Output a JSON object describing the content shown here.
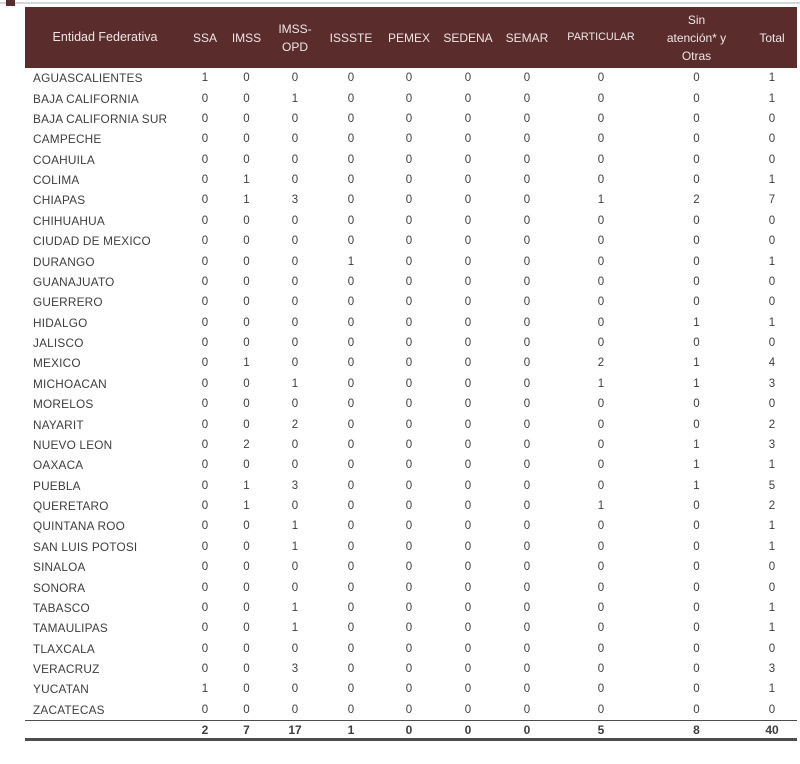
{
  "colors": {
    "header_bg": "#5a2c2c",
    "header_text": "#f0e6e6",
    "body_text": "#3d3d3d",
    "top_rule": "#d6d6d6",
    "total_line": "#4d4d4d"
  },
  "table": {
    "title_column": "Entidad Federativa",
    "columns": [
      {
        "id": "ssa",
        "label": "SSA"
      },
      {
        "id": "imss",
        "label": "IMSS"
      },
      {
        "id": "imss-opd",
        "label": "IMSS-\nOPD"
      },
      {
        "id": "issste",
        "label": "ISSSTE"
      },
      {
        "id": "pemex",
        "label": "PEMEX"
      },
      {
        "id": "sedena",
        "label": "SEDENA"
      },
      {
        "id": "semar",
        "label": "SEMAR"
      },
      {
        "id": "particular",
        "label": "PARTICULAR"
      },
      {
        "id": "sin-atencion-otras",
        "label": "Sin\natención* y\nOtras"
      },
      {
        "id": "total",
        "label": "Total"
      }
    ],
    "rows": [
      {
        "state": "AGUASCALIENTES",
        "values": [
          1,
          0,
          0,
          0,
          0,
          0,
          0,
          0,
          0,
          1
        ]
      },
      {
        "state": "BAJA CALIFORNIA",
        "values": [
          0,
          0,
          1,
          0,
          0,
          0,
          0,
          0,
          0,
          1
        ]
      },
      {
        "state": "BAJA CALIFORNIA SUR",
        "values": [
          0,
          0,
          0,
          0,
          0,
          0,
          0,
          0,
          0,
          0
        ]
      },
      {
        "state": "CAMPECHE",
        "values": [
          0,
          0,
          0,
          0,
          0,
          0,
          0,
          0,
          0,
          0
        ]
      },
      {
        "state": "COAHUILA",
        "values": [
          0,
          0,
          0,
          0,
          0,
          0,
          0,
          0,
          0,
          0
        ]
      },
      {
        "state": "COLIMA",
        "values": [
          0,
          1,
          0,
          0,
          0,
          0,
          0,
          0,
          0,
          1
        ]
      },
      {
        "state": "CHIAPAS",
        "values": [
          0,
          1,
          3,
          0,
          0,
          0,
          0,
          1,
          2,
          7
        ]
      },
      {
        "state": "CHIHUAHUA",
        "values": [
          0,
          0,
          0,
          0,
          0,
          0,
          0,
          0,
          0,
          0
        ]
      },
      {
        "state": "CIUDAD DE MEXICO",
        "values": [
          0,
          0,
          0,
          0,
          0,
          0,
          0,
          0,
          0,
          0
        ]
      },
      {
        "state": "DURANGO",
        "values": [
          0,
          0,
          0,
          1,
          0,
          0,
          0,
          0,
          0,
          1
        ]
      },
      {
        "state": "GUANAJUATO",
        "values": [
          0,
          0,
          0,
          0,
          0,
          0,
          0,
          0,
          0,
          0
        ]
      },
      {
        "state": "GUERRERO",
        "values": [
          0,
          0,
          0,
          0,
          0,
          0,
          0,
          0,
          0,
          0
        ]
      },
      {
        "state": "HIDALGO",
        "values": [
          0,
          0,
          0,
          0,
          0,
          0,
          0,
          0,
          1,
          1
        ]
      },
      {
        "state": "JALISCO",
        "values": [
          0,
          0,
          0,
          0,
          0,
          0,
          0,
          0,
          0,
          0
        ]
      },
      {
        "state": "MEXICO",
        "values": [
          0,
          1,
          0,
          0,
          0,
          0,
          0,
          2,
          1,
          4
        ]
      },
      {
        "state": "MICHOACAN",
        "values": [
          0,
          0,
          1,
          0,
          0,
          0,
          0,
          1,
          1,
          3
        ]
      },
      {
        "state": "MORELOS",
        "values": [
          0,
          0,
          0,
          0,
          0,
          0,
          0,
          0,
          0,
          0
        ]
      },
      {
        "state": "NAYARIT",
        "values": [
          0,
          0,
          2,
          0,
          0,
          0,
          0,
          0,
          0,
          2
        ]
      },
      {
        "state": "NUEVO LEON",
        "values": [
          0,
          2,
          0,
          0,
          0,
          0,
          0,
          0,
          1,
          3
        ]
      },
      {
        "state": "OAXACA",
        "values": [
          0,
          0,
          0,
          0,
          0,
          0,
          0,
          0,
          1,
          1
        ]
      },
      {
        "state": "PUEBLA",
        "values": [
          0,
          1,
          3,
          0,
          0,
          0,
          0,
          0,
          1,
          5
        ]
      },
      {
        "state": "QUERETARO",
        "values": [
          0,
          1,
          0,
          0,
          0,
          0,
          0,
          1,
          0,
          2
        ]
      },
      {
        "state": "QUINTANA ROO",
        "values": [
          0,
          0,
          1,
          0,
          0,
          0,
          0,
          0,
          0,
          1
        ]
      },
      {
        "state": "SAN  LUIS POTOSI",
        "values": [
          0,
          0,
          1,
          0,
          0,
          0,
          0,
          0,
          0,
          1
        ]
      },
      {
        "state": "SINALOA",
        "values": [
          0,
          0,
          0,
          0,
          0,
          0,
          0,
          0,
          0,
          0
        ]
      },
      {
        "state": "SONORA",
        "values": [
          0,
          0,
          0,
          0,
          0,
          0,
          0,
          0,
          0,
          0
        ]
      },
      {
        "state": "TABASCO",
        "values": [
          0,
          0,
          1,
          0,
          0,
          0,
          0,
          0,
          0,
          1
        ]
      },
      {
        "state": "TAMAULIPAS",
        "values": [
          0,
          0,
          1,
          0,
          0,
          0,
          0,
          0,
          0,
          1
        ]
      },
      {
        "state": "TLAXCALA",
        "values": [
          0,
          0,
          0,
          0,
          0,
          0,
          0,
          0,
          0,
          0
        ]
      },
      {
        "state": "VERACRUZ",
        "values": [
          0,
          0,
          3,
          0,
          0,
          0,
          0,
          0,
          0,
          3
        ]
      },
      {
        "state": "YUCATAN",
        "values": [
          1,
          0,
          0,
          0,
          0,
          0,
          0,
          0,
          0,
          1
        ]
      },
      {
        "state": "ZACATECAS",
        "values": [
          0,
          0,
          0,
          0,
          0,
          0,
          0,
          0,
          0,
          0
        ]
      }
    ],
    "totals": [
      2,
      7,
      17,
      1,
      0,
      0,
      0,
      5,
      8,
      40
    ]
  }
}
